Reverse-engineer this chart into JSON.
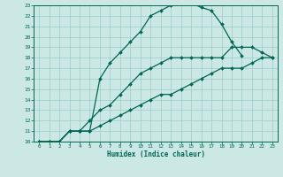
{
  "xlabel": "Humidex (Indice chaleur)",
  "bg_color": "#cce8e4",
  "grid_color": "#99cccc",
  "line_color": "#006655",
  "xlim": [
    -0.5,
    23.5
  ],
  "ylim": [
    10,
    23
  ],
  "xticks": [
    0,
    1,
    2,
    3,
    4,
    5,
    6,
    7,
    8,
    9,
    10,
    11,
    12,
    13,
    14,
    15,
    16,
    17,
    18,
    19,
    20,
    21,
    22,
    23
  ],
  "yticks": [
    10,
    11,
    12,
    13,
    14,
    15,
    16,
    17,
    18,
    19,
    20,
    21,
    22,
    23
  ],
  "line1_x": [
    0,
    1,
    2,
    3,
    4,
    5,
    6,
    7,
    8,
    9,
    10,
    11,
    12,
    13,
    14,
    15,
    16,
    17,
    18,
    19,
    20
  ],
  "line1_y": [
    10,
    10,
    10,
    11,
    11,
    11,
    16,
    17.5,
    18.5,
    19.5,
    20.5,
    22,
    22.5,
    23,
    23.2,
    23.2,
    22.8,
    22.5,
    21.2,
    19.5,
    18.2
  ],
  "line2_x": [
    0,
    1,
    2,
    3,
    4,
    5,
    6,
    7,
    8,
    9,
    10,
    11,
    12,
    13,
    14,
    15,
    16,
    17,
    18,
    19,
    20,
    21,
    22,
    23
  ],
  "line2_y": [
    10,
    10,
    10,
    11,
    11,
    12,
    13,
    13.5,
    14.5,
    15.5,
    16.5,
    17,
    17.5,
    18,
    18,
    18,
    18,
    18,
    18,
    19,
    19,
    19,
    18.5,
    18
  ],
  "line3_x": [
    0,
    1,
    2,
    3,
    4,
    5,
    6,
    7,
    8,
    9,
    10,
    11,
    12,
    13,
    14,
    15,
    16,
    17,
    18,
    19,
    20,
    21,
    22,
    23
  ],
  "line3_y": [
    10,
    10,
    10,
    11,
    11,
    11,
    11.5,
    12,
    12.5,
    13,
    13.5,
    14,
    14.5,
    14.5,
    15,
    15.5,
    16,
    16.5,
    17,
    17,
    17,
    17.5,
    18,
    18
  ]
}
